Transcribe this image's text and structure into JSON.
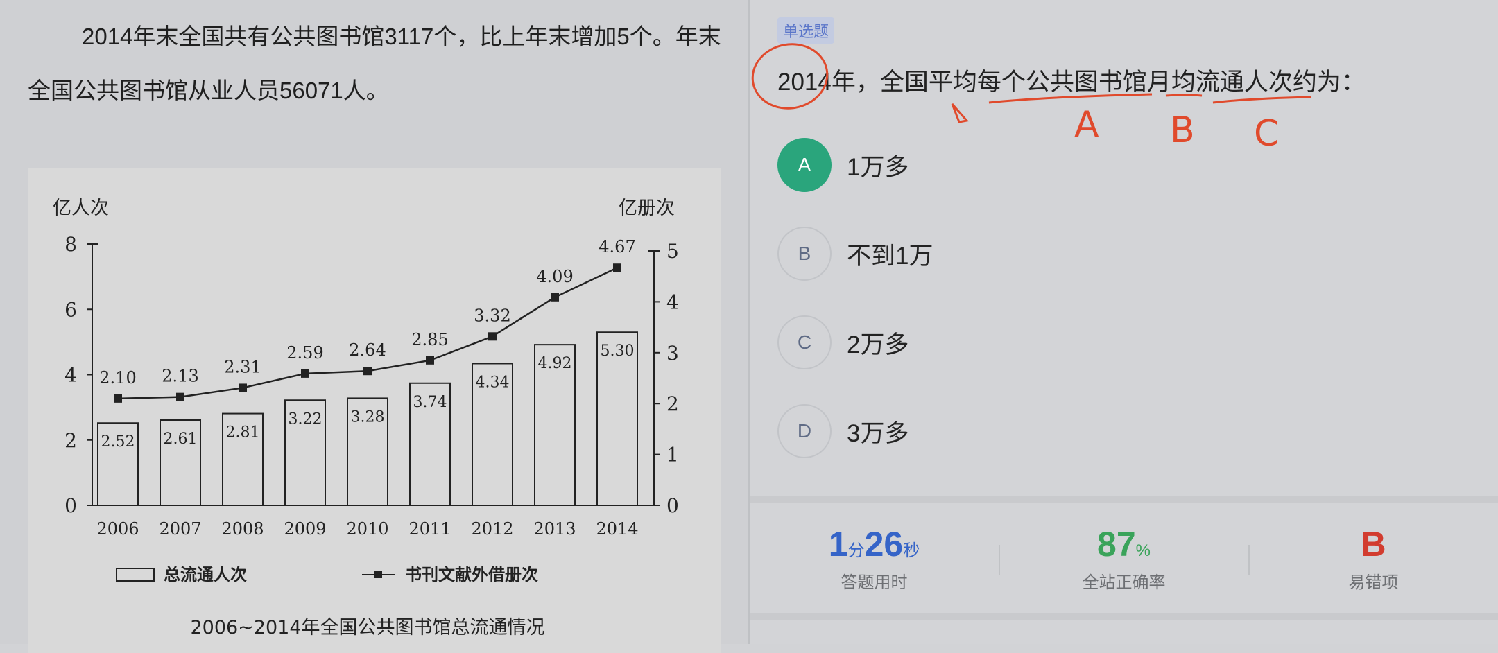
{
  "passage": {
    "text": "2014年末全国共有公共图书馆3117个，比上年末增加5个。年末全国公共图书馆从业人员56071人。"
  },
  "chart_data": {
    "type": "bar",
    "title": "2006~2014年全国公共图书馆总流通情况",
    "categories": [
      "2006",
      "2007",
      "2008",
      "2009",
      "2010",
      "2011",
      "2012",
      "2013",
      "2014"
    ],
    "series": [
      {
        "name": "总流通人次",
        "type": "bar",
        "axis": "left",
        "values": [
          2.52,
          2.61,
          2.81,
          3.22,
          3.28,
          3.74,
          4.34,
          4.92,
          5.3
        ]
      },
      {
        "name": "书刊文献外借册次",
        "type": "line",
        "axis": "right",
        "values": [
          2.1,
          2.13,
          2.31,
          2.59,
          2.64,
          2.85,
          3.32,
          4.09,
          4.67
        ]
      }
    ],
    "ylabel_left": "亿人次",
    "ylabel_right": "亿册次",
    "ylim_left": [
      0,
      8
    ],
    "ylim_right": [
      0,
      5
    ],
    "yticks_left": [
      "0",
      "2",
      "4",
      "6",
      "8"
    ],
    "yticks_right": [
      "0",
      "1",
      "2",
      "3",
      "4",
      "5"
    ],
    "legend": [
      "总流通人次",
      "书刊文献外借册次"
    ]
  },
  "question": {
    "type_tag": "单选题",
    "stem": "2014年，全国平均每个公共图书馆月均流通人次约为：",
    "annotation_marks": [
      "A",
      "B",
      "C"
    ],
    "options": [
      {
        "letter": "A",
        "text": "1万多",
        "selected": true
      },
      {
        "letter": "B",
        "text": "不到1万",
        "selected": false
      },
      {
        "letter": "C",
        "text": "2万多",
        "selected": false
      },
      {
        "letter": "D",
        "text": "3万多",
        "selected": false
      }
    ]
  },
  "stats": {
    "time_min": "1",
    "time_min_unit": "分",
    "time_sec": "26",
    "time_sec_unit": "秒",
    "time_label": "答题用时",
    "accuracy": "87",
    "accuracy_unit": "%",
    "accuracy_label": "全站正确率",
    "wrong_option": "B",
    "wrong_label": "易错项"
  },
  "colors": {
    "accent_green": "#2aa57c",
    "time_blue": "#3564c8",
    "accuracy_green": "#3aa35a",
    "wrong_red": "#d23c2f",
    "annotation_red": "#e04a2c"
  }
}
